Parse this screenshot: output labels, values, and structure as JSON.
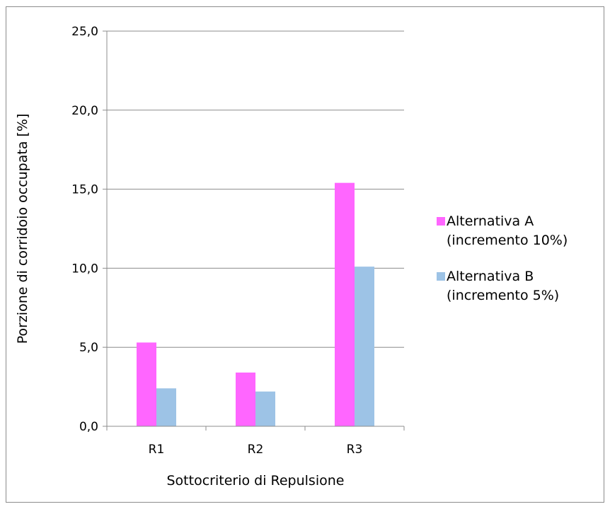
{
  "chart_data": {
    "type": "bar",
    "title": "",
    "xlabel": "Sottocriterio di Repulsione",
    "ylabel": "Porzione di corridoio occupata [%]",
    "categories": [
      "R1",
      "R2",
      "R3"
    ],
    "ylim": [
      0,
      25
    ],
    "yticks": [
      0,
      5,
      10,
      15,
      20,
      25
    ],
    "ytick_labels": [
      "0,0",
      "5,0",
      "10,0",
      "15,0",
      "20,0",
      "25,0"
    ],
    "grid": "horizontal",
    "legend_position": "right",
    "series": [
      {
        "name": "Alternativa A (incremento 10%)",
        "legend_lines": [
          "Alternativa A",
          "(incremento 10%)"
        ],
        "color": "#ff66ff",
        "values": [
          5.3,
          3.4,
          15.4
        ]
      },
      {
        "name": "Alternativa B (incremento 5%)",
        "legend_lines": [
          "Alternativa B",
          "(incremento 5%)"
        ],
        "color": "#9dc3e6",
        "values": [
          2.4,
          2.2,
          10.1
        ]
      }
    ]
  }
}
